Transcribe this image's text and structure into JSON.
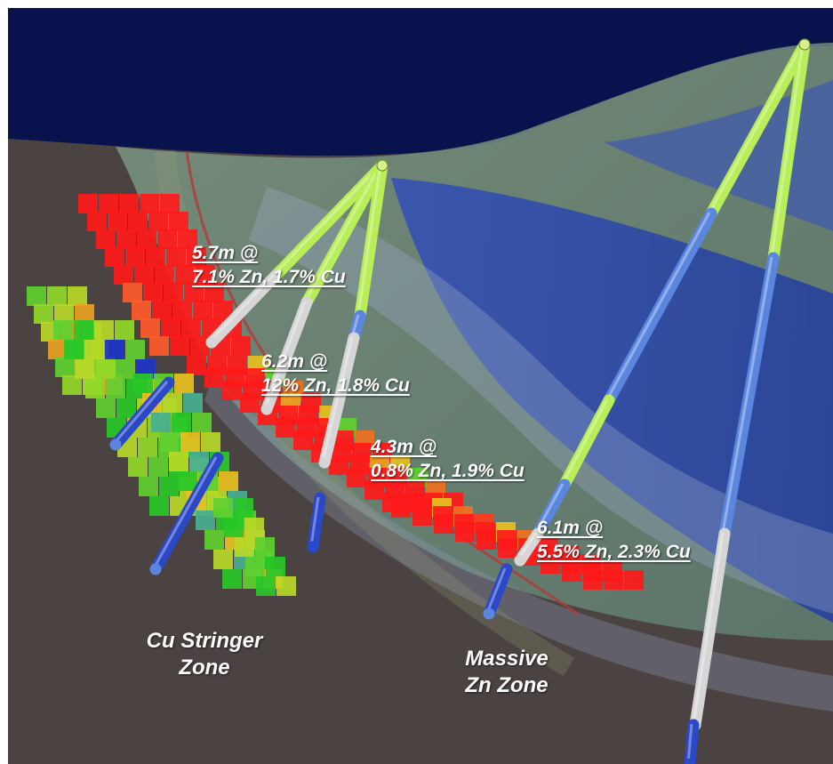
{
  "intercepts": [
    {
      "length": "5.7m @",
      "grade": "7.1% Zn, 1.7% Cu"
    },
    {
      "length": "6.2m @",
      "grade": "12% Zn, 1.8% Cu"
    },
    {
      "length": "4.3m @",
      "grade": "0.8% Zn, 1.9% Cu"
    },
    {
      "length": "6.1m @",
      "grade": "5.5% Zn, 2.3% Cu"
    }
  ],
  "zones": {
    "stringer": {
      "line1": "Cu Stringer",
      "line2": "Zone"
    },
    "massive": {
      "line1": "Massive",
      "line2": "Zn Zone"
    }
  },
  "colors": {
    "sky": "#08124d",
    "ground": "#4a4341",
    "overburden": "#6e8a78",
    "blue_unit": "#2d47a8",
    "drillhole_lit": "#b8ee58",
    "drillhole_blue": "#5b86e0",
    "drillhole_white": "#d6d6d6",
    "high_grade": "#ff1a1a",
    "low_grade": "#28d028"
  }
}
